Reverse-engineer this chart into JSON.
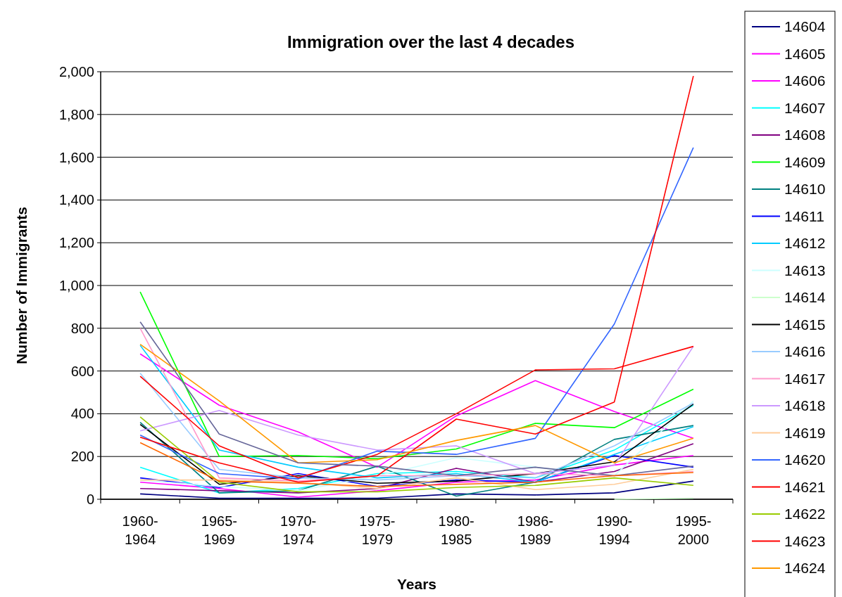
{
  "chart_data": {
    "type": "line",
    "title": "Immigration over the last 4 decades",
    "xlabel": "Years",
    "ylabel": "Number of Immigrants",
    "categories": [
      "1960-\n1964",
      "1965-\n1969",
      "1970-\n1974",
      "1975-\n1979",
      "1980-\n1985",
      "1986-\n1989",
      "1990-\n1994",
      "1995-\n2000"
    ],
    "ylim": [
      0,
      2000
    ],
    "yticks": [
      0,
      {
        "value": 200,
        "label": "200"
      },
      {
        "value": 400,
        "label": "400"
      },
      {
        "value": 600,
        "label": "600"
      },
      {
        "value": 800,
        "label": "800"
      },
      {
        "value": 1000,
        "label": "1,000"
      },
      {
        "value": 1200,
        "label": "1,200"
      },
      {
        "value": 1400,
        "label": "1,400"
      },
      {
        "value": 1600,
        "label": "1,600"
      },
      {
        "value": 1800,
        "label": "1,800"
      },
      {
        "value": 2000,
        "label": "2,000"
      }
    ],
    "grid": "y",
    "legend": "right",
    "marker": "none",
    "line_style": "solid",
    "series": [
      {
        "name": "14604",
        "color": "#000080",
        "values": [
          25,
          5,
          5,
          5,
          25,
          20,
          30,
          85
        ]
      },
      {
        "name": "14605",
        "color": "#ff00ff",
        "values": [
          680,
          440,
          315,
          150,
          390,
          555,
          410,
          285
        ]
      },
      {
        "name": "14606",
        "color": "#ff00ff",
        "values": [
          80,
          50,
          10,
          40,
          80,
          90,
          160,
          205
        ]
      },
      {
        "name": "14607",
        "color": "#00ffff",
        "values": [
          150,
          30,
          50,
          120,
          130,
          100,
          230,
          440
        ]
      },
      {
        "name": "14608",
        "color": "#800080",
        "values": [
          50,
          40,
          30,
          50,
          145,
          80,
          130,
          260
        ]
      },
      {
        "name": "14609",
        "color": "#00ff00",
        "values": [
          970,
          200,
          205,
          190,
          235,
          355,
          335,
          515
        ]
      },
      {
        "name": "14610",
        "color": "#008080",
        "values": [
          360,
          30,
          40,
          155,
          15,
          80,
          280,
          345
        ]
      },
      {
        "name": "14611",
        "color": "#0000ff",
        "values": [
          100,
          55,
          120,
          60,
          90,
          80,
          205,
          150
        ]
      },
      {
        "name": "14612",
        "color": "#00ccff",
        "values": [
          720,
          230,
          150,
          100,
          120,
          80,
          210,
          340
        ]
      },
      {
        "name": "14613",
        "color": "#ccffff",
        "values": [
          90,
          60,
          40,
          110,
          195,
          150,
          110,
          460
        ]
      },
      {
        "name": "14614",
        "color": "#ccffcc",
        "values": [
          null,
          null,
          null,
          null,
          null,
          null,
          0,
          5
        ]
      },
      {
        "name": "14615",
        "color": "#000000",
        "values": [
          350,
          70,
          110,
          75,
          85,
          120,
          175,
          445
        ]
      },
      {
        "name": "14616",
        "color": "#99ccff",
        "values": [
          590,
          140,
          100,
          90,
          110,
          100,
          250,
          450
        ]
      },
      {
        "name": "14617",
        "color": "#ff99cc",
        "values": [
          800,
          100,
          85,
          110,
          110,
          120,
          110,
          130
        ]
      },
      {
        "name": "14618",
        "color": "#cc99ff",
        "values": [
          320,
          415,
          300,
          230,
          250,
          120,
          160,
          715
        ]
      },
      {
        "name": "14619",
        "color": "#ffcc99",
        "values": [
          90,
          90,
          80,
          50,
          100,
          45,
          70,
          140
        ]
      },
      {
        "name": "14620",
        "color": "#3366ff",
        "values": [
          300,
          120,
          95,
          225,
          210,
          285,
          820,
          1645
        ]
      },
      {
        "name": "14621",
        "color": "#ff0000",
        "values": [
          575,
          250,
          100,
          210,
          400,
          605,
          610,
          715
        ]
      },
      {
        "name": "14622",
        "color": "#99cc00",
        "values": [
          385,
          80,
          35,
          35,
          55,
          65,
          100,
          65
        ]
      },
      {
        "name": "14623",
        "color": "#ff0000",
        "values": [
          290,
          170,
          80,
          110,
          375,
          305,
          455,
          1980
        ]
      },
      {
        "name": "14624",
        "color": "#ff9900",
        "values": [
          725,
          460,
          170,
          185,
          275,
          345,
          170,
          285
        ]
      },
      {
        "color": "#666699",
        "values": [
          830,
          305,
          170,
          155,
          110,
          150,
          110,
          155
        ]
      },
      {
        "color": "#ff6600",
        "values": [
          265,
          85,
          75,
          60,
          70,
          80,
          110,
          125
        ]
      }
    ]
  }
}
